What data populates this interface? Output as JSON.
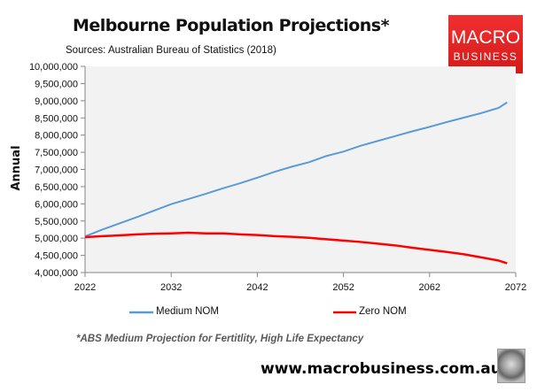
{
  "header": {
    "title": "Melbourne Population Projections*",
    "subtitle": "Sources: Australian Bureau of Statistics (2018)"
  },
  "logo": {
    "line1": "MACRO",
    "line2": "BUSINESS"
  },
  "footnote": "*ABS Medium Projection for Fertitlity, High Life Expectancy",
  "url": "www.macrobusiness.com.au",
  "chart_data": {
    "type": "line",
    "title": "Melbourne Population Projections*",
    "xlabel": "",
    "ylabel": "Annual",
    "xlim": [
      2022,
      2072
    ],
    "ylim": [
      4000000,
      10000000
    ],
    "xticks": [
      "2022",
      "2032",
      "2042",
      "2052",
      "2062",
      "2072"
    ],
    "yticks": [
      "4,000,000",
      "4,500,000",
      "5,000,000",
      "5,500,000",
      "6,000,000",
      "6,500,000",
      "7,000,000",
      "7,500,000",
      "8,000,000",
      "8,500,000",
      "9,000,000",
      "9,500,000",
      "10,000,000"
    ],
    "grid": false,
    "legend": "bottom",
    "series": [
      {
        "name": "Medium NOM",
        "color": "#5b9bd5",
        "x": [
          2022,
          2024,
          2026,
          2028,
          2030,
          2032,
          2034,
          2036,
          2038,
          2040,
          2042,
          2044,
          2046,
          2048,
          2050,
          2052,
          2054,
          2056,
          2058,
          2060,
          2062,
          2064,
          2066,
          2068,
          2070,
          2071
        ],
        "values": [
          5050000,
          5250000,
          5430000,
          5610000,
          5800000,
          5990000,
          6140000,
          6290000,
          6450000,
          6600000,
          6760000,
          6930000,
          7080000,
          7210000,
          7390000,
          7520000,
          7690000,
          7830000,
          7970000,
          8110000,
          8240000,
          8380000,
          8510000,
          8640000,
          8790000,
          8950000
        ]
      },
      {
        "name": "Zero NOM",
        "color": "#ff0000",
        "x": [
          2022,
          2024,
          2026,
          2028,
          2030,
          2032,
          2034,
          2036,
          2038,
          2040,
          2042,
          2044,
          2046,
          2048,
          2050,
          2052,
          2054,
          2056,
          2058,
          2060,
          2062,
          2064,
          2066,
          2068,
          2070,
          2071
        ],
        "values": [
          5030000,
          5060000,
          5080000,
          5110000,
          5130000,
          5140000,
          5160000,
          5140000,
          5140000,
          5110000,
          5090000,
          5060000,
          5040000,
          5010000,
          4970000,
          4930000,
          4890000,
          4840000,
          4790000,
          4720000,
          4660000,
          4600000,
          4530000,
          4440000,
          4350000,
          4270000
        ]
      }
    ]
  }
}
